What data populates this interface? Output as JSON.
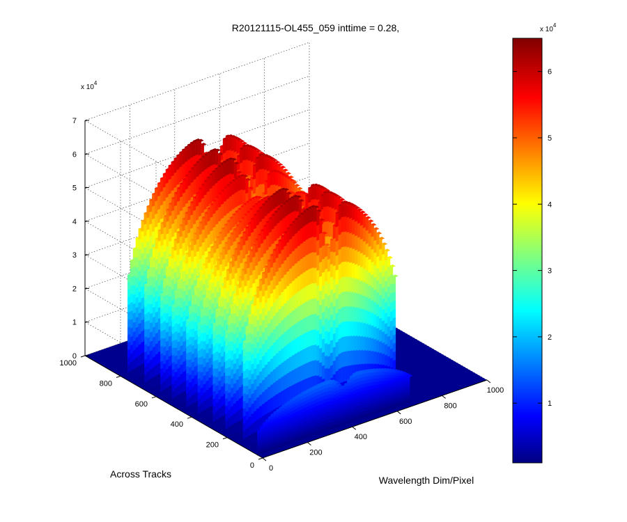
{
  "chart_data": {
    "type": "surface3d",
    "title": "R20121115-OL455_059 inttime = 0.28,",
    "xlabel": "Across Tracks",
    "ylabel": "Wavelength Dim/Pixel",
    "zlabel": "",
    "x_ticks": [
      "0",
      "200",
      "400",
      "600",
      "800",
      "1000"
    ],
    "y_ticks": [
      "0",
      "200",
      "400",
      "600",
      "800",
      "1000"
    ],
    "z_ticks": [
      "0",
      "1",
      "2",
      "3",
      "4",
      "5",
      "6",
      "7"
    ],
    "z_exponent": "x 10",
    "z_exponent_power": "4",
    "xlim": [
      0,
      1000
    ],
    "ylim": [
      0,
      1000
    ],
    "zlim": [
      0,
      70000
    ],
    "colorbar": {
      "ticks": [
        "1",
        "2",
        "3",
        "4",
        "5",
        "6"
      ],
      "exponent": "x 10",
      "exponent_power": "4",
      "range": [
        1000,
        65000
      ],
      "colormap": "jet"
    },
    "grid": true,
    "columns": [
      {
        "x": 30,
        "peak": 15000
      },
      {
        "x": 110,
        "peak": 65000
      },
      {
        "x": 210,
        "peak": 65000
      },
      {
        "x": 280,
        "peak": 65000
      },
      {
        "x": 365,
        "peak": 60000
      },
      {
        "x": 430,
        "peak": 58000
      },
      {
        "x": 510,
        "peak": 62000
      },
      {
        "x": 575,
        "peak": 65000
      },
      {
        "x": 665,
        "peak": 65000
      },
      {
        "x": 760,
        "peak": 65000
      }
    ],
    "wavelength_range": [
      0,
      680
    ]
  }
}
